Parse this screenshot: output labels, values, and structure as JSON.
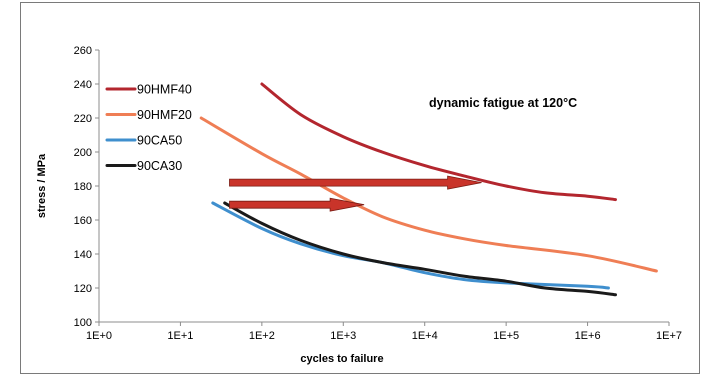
{
  "chart_data": {
    "type": "line",
    "xscale": "log",
    "xlabel": "cycles to failure",
    "ylabel": "stress / MPa",
    "xlim": [
      1,
      10000000
    ],
    "ylim": [
      100,
      260
    ],
    "xticks": [
      "1E+0",
      "1E+1",
      "1E+2",
      "1E+3",
      "1E+4",
      "1E+5",
      "1E+6",
      "1E+7"
    ],
    "yticks": [
      100,
      120,
      140,
      160,
      180,
      200,
      220,
      240,
      260
    ],
    "annotation": "dynamic fatigue at 120°C",
    "legend_position": "top-left",
    "series": [
      {
        "name": "90HMF40",
        "color": "#b3262e",
        "points": [
          [
            100,
            240
          ],
          [
            300,
            222
          ],
          [
            1000,
            209
          ],
          [
            3000,
            200
          ],
          [
            10000,
            192
          ],
          [
            30000,
            186
          ],
          [
            100000,
            180
          ],
          [
            300000,
            176
          ],
          [
            1000000,
            174
          ],
          [
            2200000,
            172
          ]
        ]
      },
      {
        "name": "90HMF20",
        "color": "#ef7e55",
        "points": [
          [
            18,
            220
          ],
          [
            100,
            199
          ],
          [
            300,
            187
          ],
          [
            1000,
            173
          ],
          [
            3000,
            162
          ],
          [
            10000,
            154
          ],
          [
            30000,
            149
          ],
          [
            100000,
            145
          ],
          [
            1000000,
            139
          ],
          [
            7000000,
            130
          ]
        ]
      },
      {
        "name": "90CA50",
        "color": "#3f8fce",
        "points": [
          [
            25,
            170
          ],
          [
            100,
            155
          ],
          [
            300,
            146
          ],
          [
            1000,
            139
          ],
          [
            3000,
            135
          ],
          [
            10000,
            129
          ],
          [
            30000,
            125
          ],
          [
            100000,
            123
          ],
          [
            1000000,
            121
          ],
          [
            1800000,
            120
          ]
        ]
      },
      {
        "name": "90CA30",
        "color": "#1a1a1a",
        "points": [
          [
            35,
            170
          ],
          [
            100,
            158
          ],
          [
            300,
            148
          ],
          [
            1000,
            140
          ],
          [
            3000,
            135
          ],
          [
            10000,
            131
          ],
          [
            30000,
            127
          ],
          [
            100000,
            124
          ],
          [
            300000,
            120
          ],
          [
            1000000,
            118
          ],
          [
            2200000,
            116
          ]
        ]
      }
    ],
    "arrows": [
      {
        "color": "#c9342a",
        "x_start": 40,
        "x_end": 50000,
        "y": 182
      },
      {
        "color": "#c9342a",
        "x_start": 40,
        "x_end": 1800,
        "y": 169
      }
    ]
  }
}
